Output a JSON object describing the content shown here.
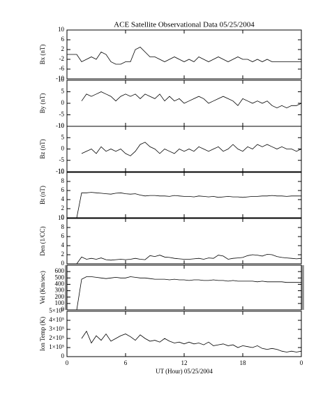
{
  "chart_data": [
    {
      "type": "line",
      "title": "ACE Satellite Observational Data   05/25/2004",
      "ylabel": "Bx (nT)",
      "ylim": [
        -10,
        10
      ],
      "yticks": [
        10,
        6,
        2,
        -2,
        -6,
        -10
      ],
      "xlim": [
        0,
        24
      ],
      "x": [
        0,
        0.5,
        1,
        1.5,
        2,
        2.5,
        3,
        3.5,
        4,
        4.5,
        5,
        5.5,
        6,
        6.5,
        7,
        7.5,
        8,
        8.5,
        9,
        9.5,
        10,
        10.5,
        11,
        11.5,
        12,
        12.5,
        13,
        13.5,
        14,
        14.5,
        15,
        15.5,
        16,
        16.5,
        17,
        17.5,
        18,
        18.5,
        19,
        19.5,
        20,
        20.5,
        21,
        21.5,
        22,
        22.5,
        23,
        23.5,
        24
      ],
      "values": [
        0,
        0,
        0,
        -3,
        -2,
        -1,
        -2,
        1,
        0,
        -3,
        -4,
        -4,
        -3,
        -3,
        2,
        3,
        1,
        -1,
        -1,
        -2,
        -3,
        -2,
        -1,
        -2,
        -3,
        -2,
        -3,
        -1,
        -2,
        -3,
        -2,
        -1,
        -2,
        -3,
        -2,
        -1,
        -2,
        -2,
        -3,
        -2,
        -3,
        -2,
        -3,
        -3,
        -3,
        -3,
        -3,
        -3,
        -3
      ]
    },
    {
      "type": "line",
      "ylabel": "By (nT)",
      "ylim": [
        -10,
        10
      ],
      "yticks": [
        10,
        5,
        0,
        -5,
        -10
      ],
      "xlim": [
        0,
        24
      ],
      "x": [
        0,
        0.5,
        1,
        1.5,
        2,
        2.5,
        3,
        3.5,
        4,
        4.5,
        5,
        5.5,
        6,
        6.5,
        7,
        7.5,
        8,
        8.5,
        9,
        9.5,
        10,
        10.5,
        11,
        11.5,
        12,
        12.5,
        13,
        13.5,
        14,
        14.5,
        15,
        15.5,
        16,
        16.5,
        17,
        17.5,
        18,
        18.5,
        19,
        19.5,
        20,
        20.5,
        21,
        21.5,
        22,
        22.5,
        23,
        23.5,
        24
      ],
      "values": [
        null,
        null,
        null,
        1,
        4,
        3,
        4,
        5,
        4,
        3,
        1,
        3,
        4,
        3,
        4,
        2,
        4,
        3,
        2,
        4,
        1,
        3,
        1,
        2,
        0,
        1,
        2,
        3,
        2,
        0,
        1,
        2,
        3,
        2,
        1,
        -1,
        2,
        1,
        0,
        1,
        0,
        1,
        -1,
        -2,
        -1,
        -2,
        -1,
        -1,
        0
      ]
    },
    {
      "type": "line",
      "ylabel": "Bz (nT)",
      "ylim": [
        -10,
        10
      ],
      "yticks": [
        10,
        5,
        0,
        -5,
        -10
      ],
      "xlim": [
        0,
        24
      ],
      "x": [
        0,
        0.5,
        1,
        1.5,
        2,
        2.5,
        3,
        3.5,
        4,
        4.5,
        5,
        5.5,
        6,
        6.5,
        7,
        7.5,
        8,
        8.5,
        9,
        9.5,
        10,
        10.5,
        11,
        11.5,
        12,
        12.5,
        13,
        13.5,
        14,
        14.5,
        15,
        15.5,
        16,
        16.5,
        17,
        17.5,
        18,
        18.5,
        19,
        19.5,
        20,
        20.5,
        21,
        21.5,
        22,
        22.5,
        23,
        23.5,
        24
      ],
      "values": [
        null,
        null,
        null,
        -2,
        -1,
        0,
        -2,
        1,
        -1,
        0,
        -1,
        0,
        -2,
        -3,
        -1,
        2,
        3,
        1,
        0,
        -2,
        0,
        -1,
        -2,
        0,
        -1,
        0,
        -1,
        1,
        0,
        -1,
        0,
        1,
        -1,
        0,
        2,
        0,
        -1,
        1,
        0,
        2,
        1,
        2,
        1,
        0,
        1,
        0,
        0,
        -1,
        0
      ]
    },
    {
      "type": "line",
      "ylabel": "Bt (nT)",
      "ylim": [
        0,
        10
      ],
      "yticks": [
        10,
        8,
        6,
        4,
        2,
        0
      ],
      "xlim": [
        0,
        24
      ],
      "x": [
        0,
        0.5,
        1,
        1.5,
        2,
        2.5,
        3,
        3.5,
        4,
        4.5,
        5,
        5.5,
        6,
        6.5,
        7,
        7.5,
        8,
        8.5,
        9,
        9.5,
        10,
        10.5,
        11,
        11.5,
        12,
        12.5,
        13,
        13.5,
        14,
        14.5,
        15,
        15.5,
        16,
        16.5,
        17,
        17.5,
        18,
        18.5,
        19,
        19.5,
        20,
        20.5,
        21,
        21.5,
        22,
        22.5,
        23,
        23.5,
        24
      ],
      "values": [
        0,
        0,
        0,
        5.5,
        5.5,
        5.6,
        5.5,
        5.4,
        5.3,
        5.2,
        5.4,
        5.5,
        5.3,
        5.2,
        5.3,
        5.0,
        4.8,
        4.9,
        4.9,
        4.8,
        4.8,
        4.7,
        4.9,
        4.8,
        4.7,
        4.7,
        4.6,
        4.8,
        4.7,
        4.6,
        4.7,
        4.5,
        4.6,
        4.7,
        4.6,
        4.6,
        4.5,
        4.6,
        4.7,
        4.7,
        4.8,
        4.8,
        4.9,
        4.8,
        4.8,
        4.7,
        4.8,
        4.8,
        4.8
      ]
    },
    {
      "type": "line",
      "ylabel": "Den (1/CC)",
      "ylim": [
        0,
        10
      ],
      "yticks": [
        10,
        8,
        6,
        4,
        2,
        0
      ],
      "xlim": [
        0,
        24
      ],
      "x": [
        0,
        0.5,
        1,
        1.5,
        2,
        2.5,
        3,
        3.5,
        4,
        4.5,
        5,
        5.5,
        6,
        6.5,
        7,
        7.5,
        8,
        8.5,
        9,
        9.5,
        10,
        10.5,
        11,
        11.5,
        12,
        12.5,
        13,
        13.5,
        14,
        14.5,
        15,
        15.5,
        16,
        16.5,
        17,
        17.5,
        18,
        18.5,
        19,
        19.5,
        20,
        20.5,
        21,
        21.5,
        22,
        22.5,
        23,
        23.5,
        24
      ],
      "values": [
        0,
        0,
        0,
        1.5,
        1,
        1.2,
        1,
        1.3,
        0.9,
        0.8,
        0.9,
        1,
        0.9,
        1,
        1.2,
        1,
        0.9,
        1.8,
        1.6,
        1.9,
        1.5,
        1.4,
        1.2,
        1.1,
        1,
        1,
        1.1,
        1.2,
        1,
        1.3,
        1.2,
        1.9,
        1.7,
        1,
        1.2,
        1.3,
        1.4,
        1.8,
        2,
        1.9,
        1.7,
        2.1,
        2,
        1.6,
        1.4,
        1.3,
        1.2,
        1.1,
        1.2
      ]
    },
    {
      "type": "line",
      "ylabel": "Vel (Km/sec)",
      "ylim": [
        0,
        700
      ],
      "yticks": [
        600,
        500,
        400,
        300,
        200,
        100,
        0
      ],
      "xlim": [
        0,
        24
      ],
      "x": [
        0,
        0.5,
        1,
        1.5,
        2,
        2.5,
        3,
        3.5,
        4,
        4.5,
        5,
        5.5,
        6,
        6.5,
        7,
        7.5,
        8,
        8.5,
        9,
        9.5,
        10,
        10.5,
        11,
        11.5,
        12,
        12.5,
        13,
        13.5,
        14,
        14.5,
        15,
        15.5,
        16,
        16.5,
        17,
        17.5,
        18,
        18.5,
        19,
        19.5,
        20,
        20.5,
        21,
        21.5,
        22,
        22.5,
        23,
        23.5,
        24
      ],
      "values": [
        0,
        0,
        0,
        480,
        520,
        520,
        510,
        500,
        490,
        500,
        510,
        500,
        500,
        520,
        510,
        500,
        500,
        490,
        480,
        480,
        480,
        470,
        480,
        470,
        470,
        460,
        470,
        470,
        460,
        460,
        470,
        460,
        460,
        450,
        460,
        450,
        450,
        450,
        450,
        440,
        450,
        440,
        440,
        440,
        440,
        430,
        430,
        430,
        430
      ]
    },
    {
      "type": "line",
      "ylabel": "Ion Temp (K)",
      "ylim": [
        0,
        500000
      ],
      "yticks": [
        {
          "value": 500000,
          "label": "5×10⁵"
        },
        {
          "value": 400000,
          "label": "4×10⁵"
        },
        {
          "value": 300000,
          "label": "3×10⁵"
        },
        {
          "value": 200000,
          "label": "2×10⁵"
        },
        {
          "value": 100000,
          "label": "1×10⁵"
        },
        0
      ],
      "xlim": [
        0,
        24
      ],
      "xticks": [
        0,
        6,
        12,
        18,
        {
          "value": 24,
          "label": "0"
        }
      ],
      "xlabel": "UT (Hour)   05/25/2004",
      "x": [
        0,
        0.5,
        1,
        1.5,
        2,
        2.5,
        3,
        3.5,
        4,
        4.5,
        5,
        5.5,
        6,
        6.5,
        7,
        7.5,
        8,
        8.5,
        9,
        9.5,
        10,
        10.5,
        11,
        11.5,
        12,
        12.5,
        13,
        13.5,
        14,
        14.5,
        15,
        15.5,
        16,
        16.5,
        17,
        17.5,
        18,
        18.5,
        19,
        19.5,
        20,
        20.5,
        21,
        21.5,
        22,
        22.5,
        23,
        23.5,
        24
      ],
      "values": [
        null,
        null,
        null,
        200000,
        280000,
        150000,
        230000,
        180000,
        250000,
        170000,
        200000,
        230000,
        250000,
        220000,
        180000,
        240000,
        200000,
        170000,
        180000,
        160000,
        200000,
        170000,
        150000,
        160000,
        140000,
        160000,
        140000,
        150000,
        130000,
        160000,
        120000,
        130000,
        140000,
        120000,
        130000,
        100000,
        120000,
        110000,
        100000,
        120000,
        90000,
        80000,
        90000,
        80000,
        60000,
        50000,
        60000,
        50000,
        60000
      ]
    }
  ]
}
